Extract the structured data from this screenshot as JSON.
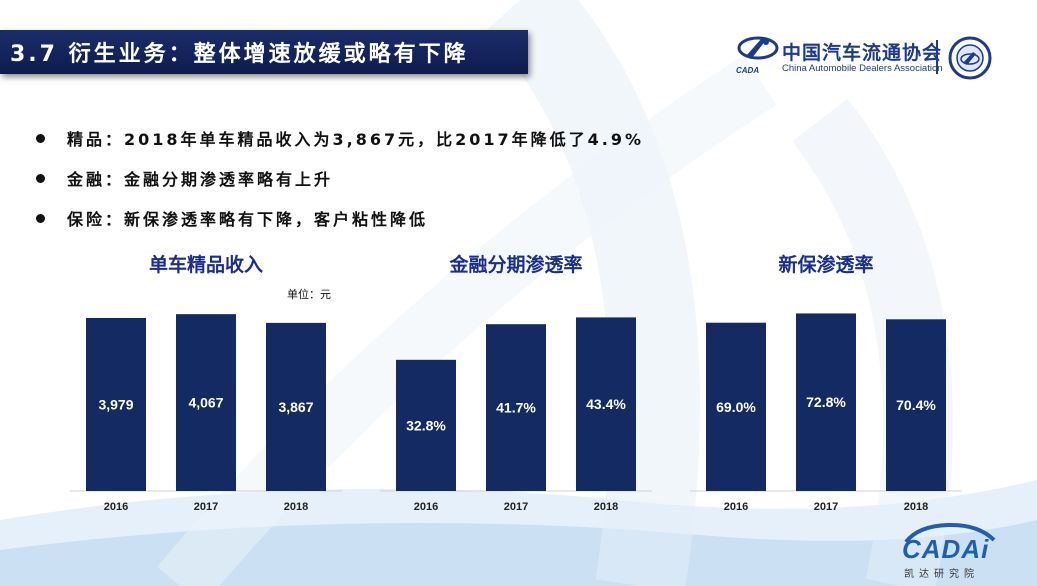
{
  "header": {
    "title": "3.7 衍生业务：整体增速放缓或略有下降"
  },
  "logo": {
    "name_cn": "中国汽车流通协会",
    "name_en": "China Automobile Dealers Association",
    "abbr": "CADA"
  },
  "bullets": [
    {
      "text": "精品：2018年单车精品收入为3,867元，比2017年降低了4.9%"
    },
    {
      "text": "金融：金融分期渗透率略有上升"
    },
    {
      "text": "保险：新保渗透率略有下降，客户粘性降低"
    }
  ],
  "footer_logo": {
    "text": "CADAi",
    "sub": "凯达研究院"
  },
  "colors": {
    "bar": "#142a63",
    "title_bar": "#0e1c4d",
    "chart_title": "#1a2f8a"
  },
  "chart_data": [
    {
      "type": "bar",
      "title": "单车精品收入",
      "unit": "单位：元",
      "categories": [
        "2016",
        "2017",
        "2018"
      ],
      "values": [
        3979,
        4067,
        3867
      ],
      "labels": [
        "3,979",
        "4,067",
        "3,867"
      ],
      "ylim": [
        0,
        4600
      ]
    },
    {
      "type": "bar",
      "title": "金融分期渗透率",
      "categories": [
        "2016",
        "2017",
        "2018"
      ],
      "values": [
        32.8,
        41.7,
        43.4
      ],
      "labels": [
        "32.8%",
        "41.7%",
        "43.4%"
      ],
      "ylim": [
        0,
        50
      ]
    },
    {
      "type": "bar",
      "title": "新保渗透率",
      "categories": [
        "2016",
        "2017",
        "2018"
      ],
      "values": [
        69.0,
        72.8,
        70.4
      ],
      "labels": [
        "69.0%",
        "72.8%",
        "70.4%"
      ],
      "ylim": [
        0,
        82
      ]
    }
  ]
}
